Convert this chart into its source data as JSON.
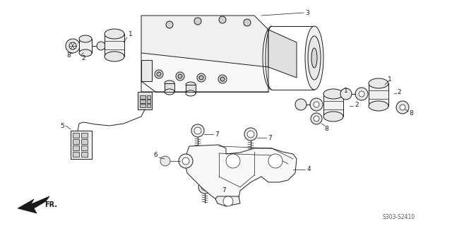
{
  "background_color": "#ffffff",
  "line_color": "#1a1a1a",
  "diagram_code": "S303-S2410",
  "fig_width": 6.4,
  "fig_height": 3.2,
  "dpi": 100
}
